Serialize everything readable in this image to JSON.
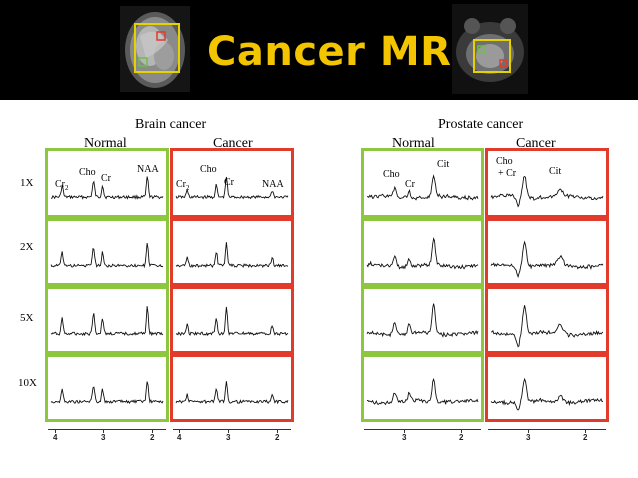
{
  "banner": {
    "title": "Cancer MRSI"
  },
  "brain": {
    "title": "Brain cancer",
    "normal_label": "Normal",
    "cancer_label": "Cancer",
    "rows": [
      "1X",
      "2X",
      "5X",
      "10X"
    ],
    "peaks_normal": {
      "cr2": "Cr",
      "cr2_sub": "2",
      "cho": "Cho",
      "cr": "Cr",
      "naa": "NAA"
    },
    "peaks_cancer": {
      "cr2": "Cr",
      "cr2_sub": "2",
      "cho": "Cho",
      "cr": "Cr",
      "naa": "NAA"
    },
    "ticks_normal": [
      "4",
      "3",
      "2"
    ],
    "ticks_cancer": [
      "4",
      "3",
      "2"
    ]
  },
  "prostate": {
    "title": "Prostate cancer",
    "normal_label": "Normal",
    "cancer_label": "Cancer",
    "peaks_normal": {
      "cho": "Cho",
      "cr": "Cr",
      "cit": "Cit"
    },
    "peaks_cancer": {
      "cho": "Cho",
      "cho_plus": "+ Cr",
      "cit": "Cit"
    },
    "ticks_normal": [
      "3",
      "2"
    ],
    "ticks_cancer": [
      "3",
      "2"
    ]
  },
  "colors": {
    "normal_frame": "#8dc63f",
    "cancer_frame": "#e23b2b",
    "title": "#f2c500"
  }
}
